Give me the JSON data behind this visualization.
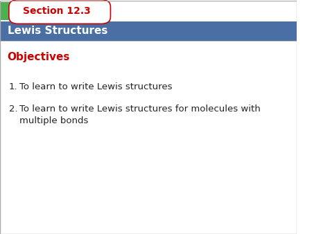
{
  "section_label": "Section 12.3",
  "title": "Lewis Structures",
  "objectives_label": "Objectives",
  "items": [
    "To learn to write Lewis structures",
    "To learn to write Lewis structures for molecules with\nmultiple bonds"
  ],
  "bg_color": "#ffffff",
  "tab_text_color": "#ffffff",
  "section_tab_bg": "#ffffff",
  "section_tab_text_color": "#cc0000",
  "section_tab_border_color": "#cc0000",
  "green_rect_color": "#4caf50",
  "objectives_color": "#cc0000",
  "body_text_color": "#222222",
  "header_bar_color": "#4a6fa5"
}
